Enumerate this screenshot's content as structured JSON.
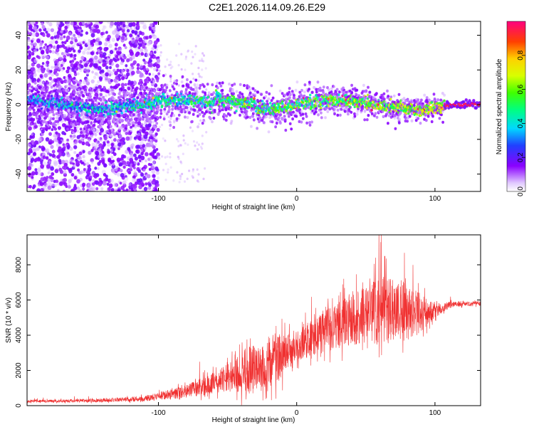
{
  "title": "C2E1.2026.114.09.26.E29",
  "colors": {
    "snr_line": "#f03030",
    "axis": "#000000"
  },
  "chart_data": [
    {
      "type": "heatmap",
      "xlabel": "Height of straight line (km)",
      "ylabel": "Frequency (Hz)",
      "xlim": [
        -195,
        133
      ],
      "ylim": [
        -50,
        48
      ],
      "xticks": [
        -100,
        0,
        100
      ],
      "yticks": [
        -40,
        -20,
        0,
        20,
        40
      ],
      "colorbar": {
        "label": "Normalized spectral amplitude",
        "range": [
          0,
          1
        ],
        "ticks": [
          "0.0",
          "0.2",
          "0.4",
          "0.6",
          "0.8"
        ],
        "tick_values": [
          0.0,
          0.2,
          0.4,
          0.6,
          0.8
        ]
      },
      "ridge": {
        "description": "energy concentrated near 0 Hz, scattered broadband noise below -100 km",
        "center_freq_hz": 0,
        "noise_region_x": [
          -195,
          -100
        ]
      }
    },
    {
      "type": "line",
      "xlabel": "Height of straight line (km)",
      "ylabel": "SNR (10 * v/v)",
      "xlim": [
        -195,
        133
      ],
      "ylim": [
        0,
        9700
      ],
      "xticks": [
        -100,
        0,
        100
      ],
      "yticks": [
        0,
        2000,
        4000,
        6000,
        8000
      ],
      "envelope": {
        "x": [
          -195,
          -150,
          -110,
          -80,
          -60,
          -45,
          -35,
          -25,
          -15,
          -5,
          5,
          20,
          35,
          50,
          60,
          70,
          80,
          90,
          100,
          110,
          120,
          133
        ],
        "mean": [
          250,
          280,
          400,
          800,
          1300,
          1700,
          1900,
          2200,
          2700,
          3100,
          3600,
          4200,
          4700,
          5200,
          5500,
          5400,
          5300,
          5200,
          5400,
          5700,
          5800,
          5800
        ],
        "spread": [
          120,
          150,
          250,
          600,
          1000,
          1500,
          2500,
          2000,
          2500,
          1600,
          1600,
          2000,
          2300,
          2700,
          3200,
          3000,
          2700,
          1800,
          700,
          300,
          250,
          200
        ]
      }
    }
  ]
}
